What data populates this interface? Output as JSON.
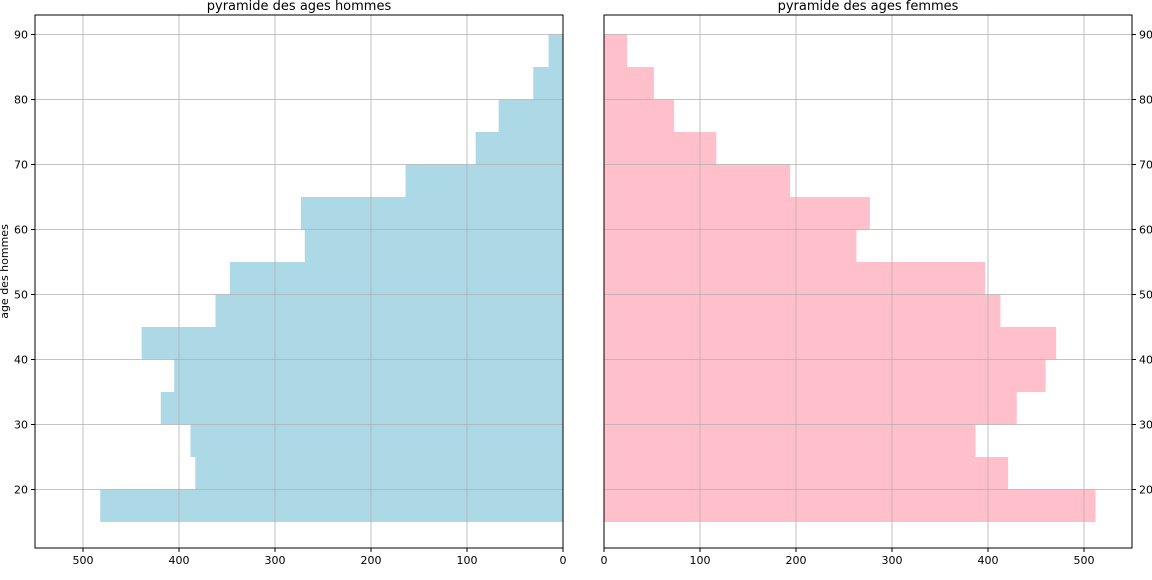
{
  "chart_data": [
    {
      "type": "bar",
      "orientation": "horizontal",
      "title": "pyramide des ages hommes",
      "xlabel": "",
      "ylabel": "age des hommes",
      "xlim": [
        550,
        0
      ],
      "ylim": [
        11,
        93
      ],
      "xticks": [
        500,
        400,
        300,
        200,
        100,
        0
      ],
      "yticks": [
        20,
        30,
        40,
        50,
        60,
        70,
        80,
        90
      ],
      "grid": true,
      "color": "#add8e6",
      "bins": [
        {
          "lo": 15,
          "hi": 20,
          "value": 482
        },
        {
          "lo": 20,
          "hi": 25,
          "value": 383
        },
        {
          "lo": 25,
          "hi": 30,
          "value": 388
        },
        {
          "lo": 30,
          "hi": 35,
          "value": 419
        },
        {
          "lo": 35,
          "hi": 40,
          "value": 405
        },
        {
          "lo": 40,
          "hi": 45,
          "value": 439
        },
        {
          "lo": 45,
          "hi": 50,
          "value": 362
        },
        {
          "lo": 50,
          "hi": 55,
          "value": 347
        },
        {
          "lo": 55,
          "hi": 60,
          "value": 269
        },
        {
          "lo": 60,
          "hi": 65,
          "value": 273
        },
        {
          "lo": 65,
          "hi": 70,
          "value": 164
        },
        {
          "lo": 70,
          "hi": 75,
          "value": 91
        },
        {
          "lo": 75,
          "hi": 80,
          "value": 67
        },
        {
          "lo": 80,
          "hi": 85,
          "value": 31
        },
        {
          "lo": 85,
          "hi": 90,
          "value": 15
        }
      ]
    },
    {
      "type": "bar",
      "orientation": "horizontal",
      "title": "pyramide des ages femmes",
      "xlabel": "",
      "ylabel": "",
      "xlim": [
        0,
        550
      ],
      "ylim": [
        11,
        93
      ],
      "xticks": [
        0,
        100,
        200,
        300,
        400,
        500
      ],
      "yticks": [
        20,
        30,
        40,
        50,
        60,
        70,
        80,
        90
      ],
      "yticks_side": "right",
      "grid": true,
      "color": "#ffc0cb",
      "bins": [
        {
          "lo": 15,
          "hi": 20,
          "value": 512
        },
        {
          "lo": 20,
          "hi": 25,
          "value": 421
        },
        {
          "lo": 25,
          "hi": 30,
          "value": 387
        },
        {
          "lo": 30,
          "hi": 35,
          "value": 430
        },
        {
          "lo": 35,
          "hi": 40,
          "value": 460
        },
        {
          "lo": 40,
          "hi": 45,
          "value": 471
        },
        {
          "lo": 45,
          "hi": 50,
          "value": 413
        },
        {
          "lo": 50,
          "hi": 55,
          "value": 397
        },
        {
          "lo": 55,
          "hi": 60,
          "value": 263
        },
        {
          "lo": 60,
          "hi": 65,
          "value": 277
        },
        {
          "lo": 65,
          "hi": 70,
          "value": 194
        },
        {
          "lo": 70,
          "hi": 75,
          "value": 117
        },
        {
          "lo": 75,
          "hi": 80,
          "value": 73
        },
        {
          "lo": 80,
          "hi": 85,
          "value": 52
        },
        {
          "lo": 85,
          "hi": 90,
          "value": 24
        }
      ]
    }
  ]
}
